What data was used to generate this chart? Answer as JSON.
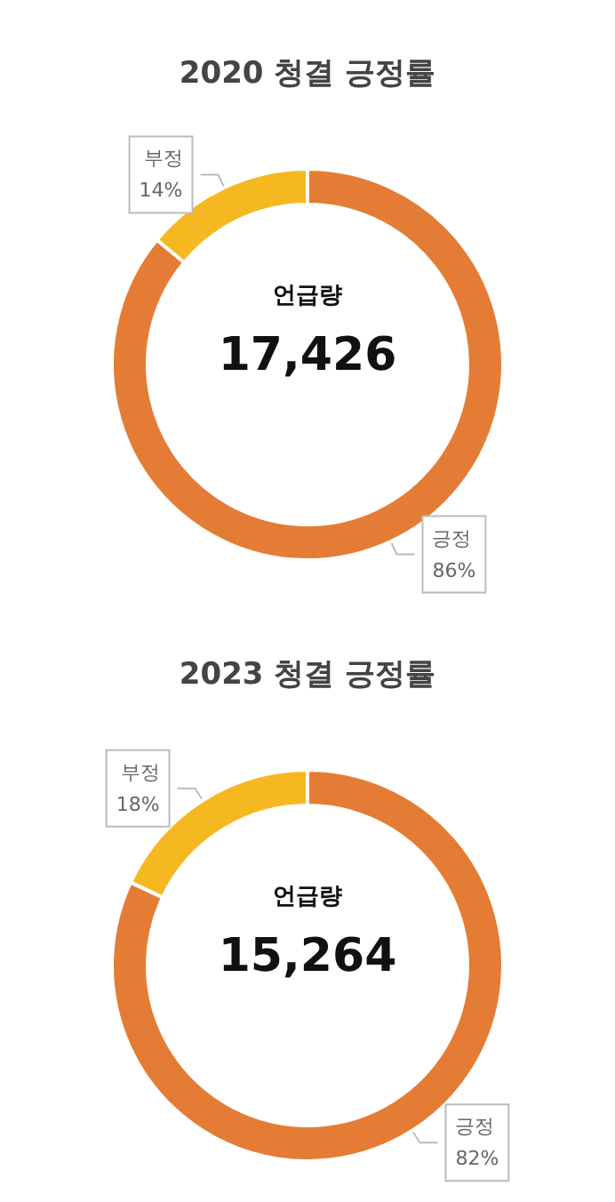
{
  "chart_data": [
    {
      "type": "donut",
      "title": "2020 청결 긍정률",
      "categories": [
        "긍정",
        "부정"
      ],
      "values": [
        86,
        14
      ],
      "value_labels": [
        "86%",
        "14%"
      ],
      "colors": [
        "#e57c35",
        "#f5b820"
      ],
      "legend": false,
      "annotations": [
        "언급량",
        "17,426"
      ]
    },
    {
      "type": "donut",
      "title": "2023 청결 긍정률",
      "categories": [
        "긍정",
        "부정"
      ],
      "values": [
        82,
        18
      ],
      "value_labels": [
        "82%",
        "18%"
      ],
      "colors": [
        "#e57c35",
        "#f5b820"
      ],
      "legend": false,
      "annotations": [
        "언급량",
        "15,264"
      ]
    }
  ]
}
